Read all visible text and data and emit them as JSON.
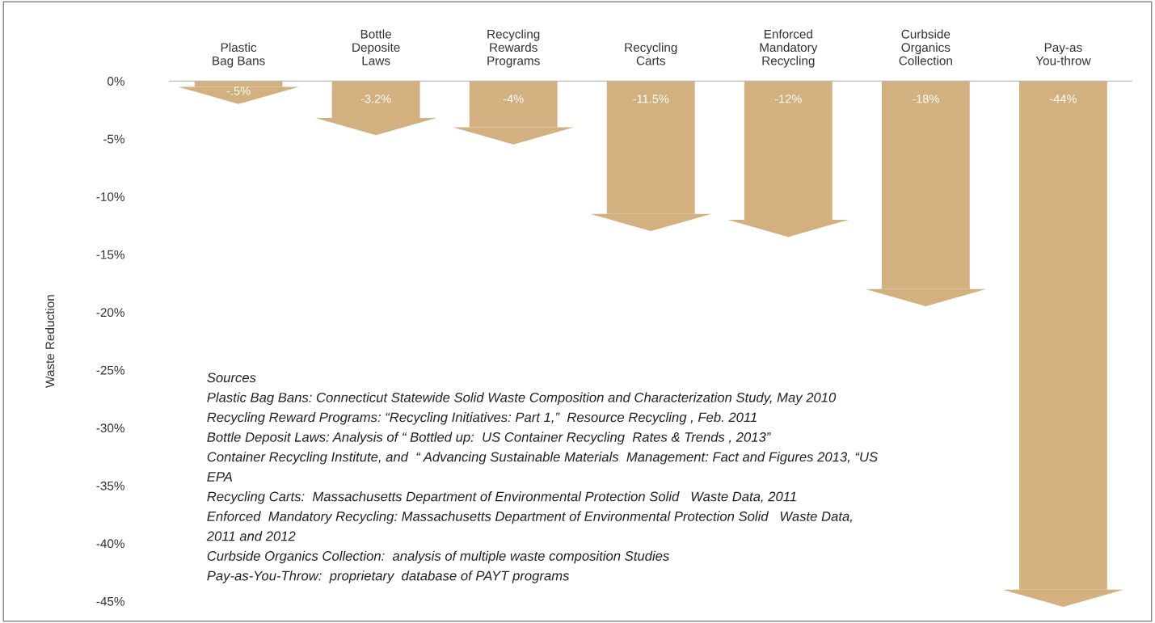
{
  "chart_data": {
    "type": "bar",
    "ylabel": "Waste Reduction",
    "categories": [
      "Plastic\nBag Bans",
      "Bottle\nDeposite\nLaws",
      "Recycling\nRewards\nPrograms",
      "Recycling\nCarts",
      "Enforced\nMandatory\nRecycling",
      "Curbside\nOrganics\nCollection",
      "Pay-as\nYou-throw"
    ],
    "values": [
      -0.5,
      -3.2,
      -4,
      -11.5,
      -12,
      -18,
      -44
    ],
    "value_labels": [
      "-.5%",
      "-3.2%",
      "-4%",
      "-11.5%",
      "-12%",
      "-18%",
      "-44%"
    ],
    "color": "#d2b07f",
    "ylim": [
      -45,
      0
    ],
    "yticks": [
      {
        "value": 0,
        "label": "0%"
      },
      {
        "value": -5,
        "label": "-5%"
      },
      {
        "value": -10,
        "label": "-10%"
      },
      {
        "value": -15,
        "label": "-15%"
      },
      {
        "value": -20,
        "label": "-20%"
      },
      {
        "value": -25,
        "label": "-25%"
      },
      {
        "value": -30,
        "label": "-30%"
      },
      {
        "value": -35,
        "label": "-35%"
      },
      {
        "value": -40,
        "label": "-40%"
      },
      {
        "value": -45,
        "label": "-45%"
      }
    ],
    "grid": false,
    "legend": false,
    "annotations": [
      "Sources",
      "Plastic Bag Bans: Connecticut Statewide Solid Waste Composition and Characterization Study, May 2010",
      "Recycling Reward Programs: “Recycling Initiatives: Part 1,”  Resource Recycling , Feb. 2011",
      "Bottle Deposit Laws: Analysis of “ Bottled up:  US Container Recycling  Rates & Trends , 2013”",
      "Container Recycling Institute, and  “ Advancing Sustainable Materials  Management: Fact and Figures 2013, “US",
      "EPA",
      "Recycling Carts:  Massachusetts Department of Environmental Protection Solid   Waste Data, 2011",
      "Enforced  Mandatory Recycling: Massachusetts Department of Environmental Protection Solid   Waste Data,",
      "2011 and 2012",
      "Curbside Organics Collection:  analysis of multiple waste composition Studies",
      "Pay-as-You-Throw:  proprietary  database of PAYT programs"
    ]
  }
}
